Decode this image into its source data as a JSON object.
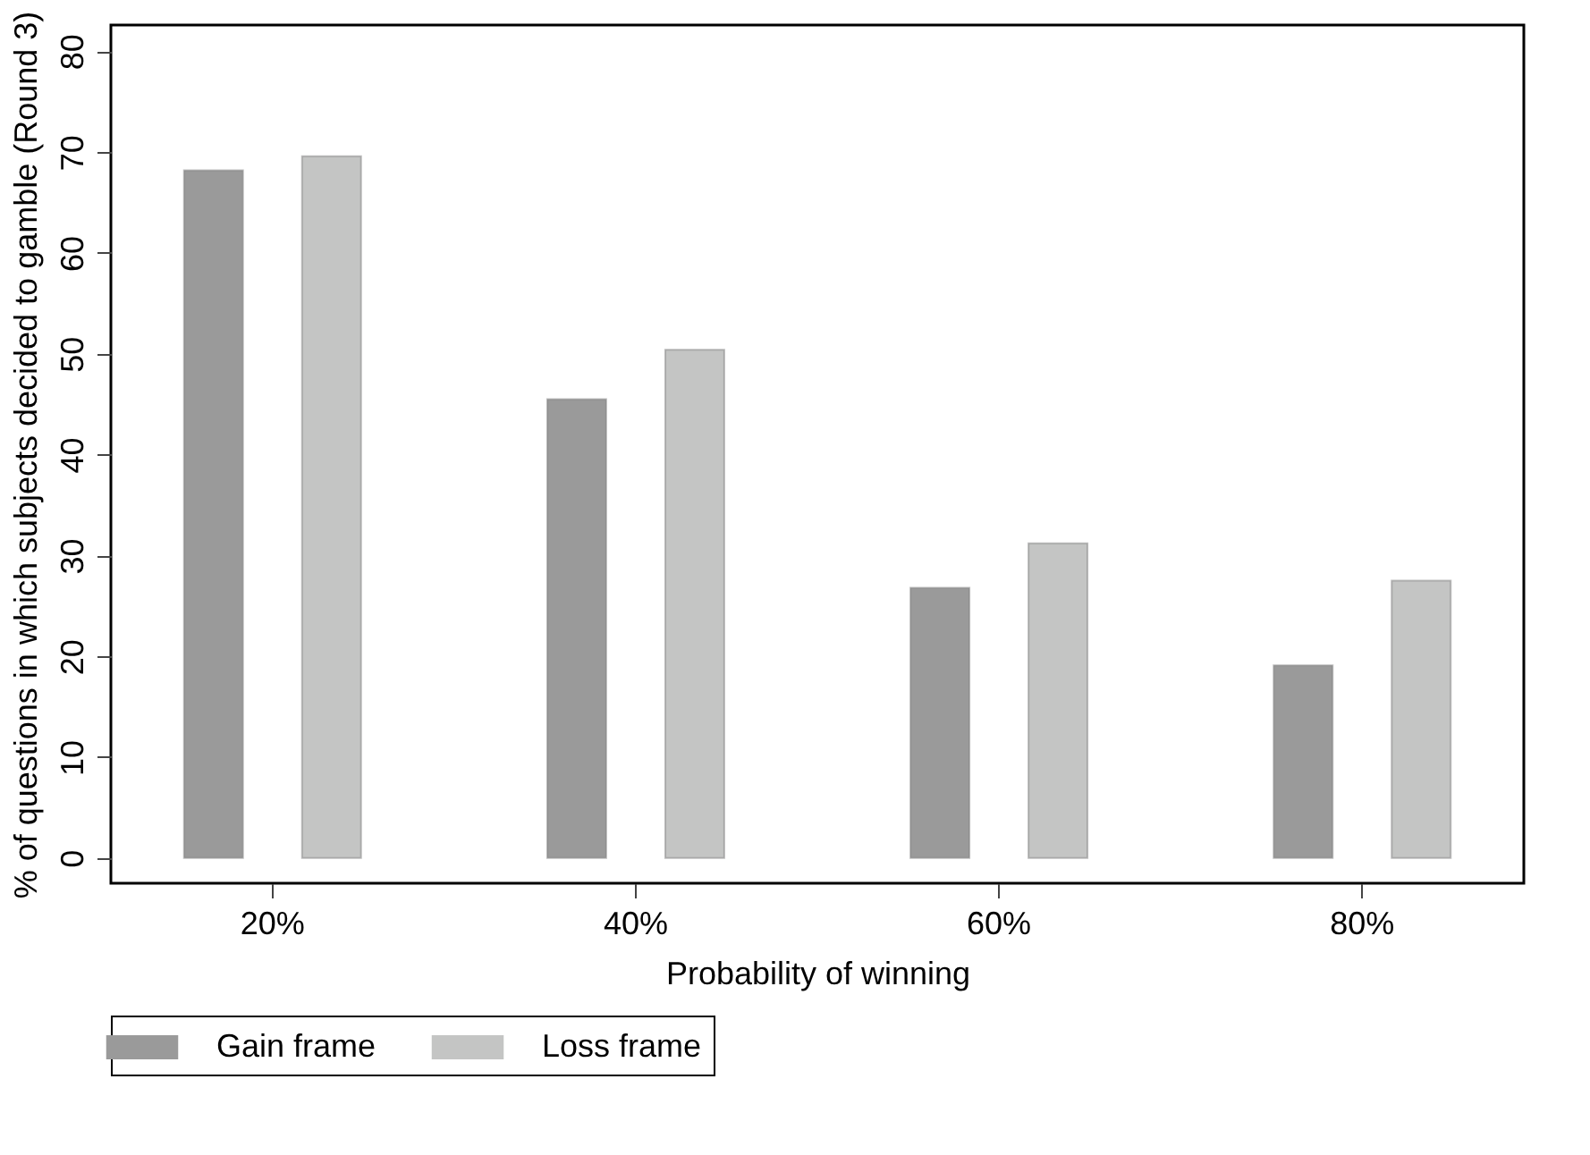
{
  "chart_data": {
    "type": "bar",
    "xlabel": "Probability of winning",
    "ylabel": "% of questions in which subjects decided to gamble (Round 3)",
    "categories": [
      "20%",
      "40%",
      "60%",
      "80%"
    ],
    "series": [
      {
        "name": "Gain frame",
        "color": "#9a9a9a",
        "values": [
          68.2,
          45.5,
          26.8,
          19.1
        ]
      },
      {
        "name": "Loss frame",
        "color": "#c4c5c4",
        "values": [
          69.6,
          50.4,
          31.2,
          27.5
        ]
      }
    ],
    "ylim": [
      -2.5,
      82.6
    ],
    "yticks": [
      0,
      10,
      20,
      30,
      40,
      50,
      60,
      70,
      80
    ],
    "grid": false,
    "legend": "bottom"
  }
}
